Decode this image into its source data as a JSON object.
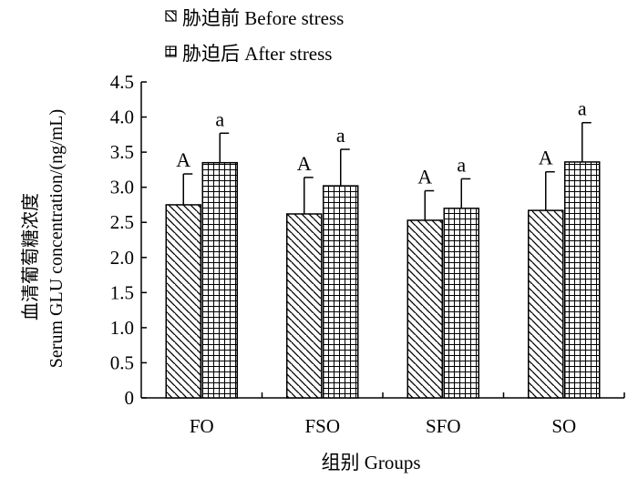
{
  "chart_data": {
    "type": "bar",
    "categories": [
      "FO",
      "FSO",
      "SFO",
      "SO"
    ],
    "series": [
      {
        "name": "胁迫前  Before stress",
        "pattern": "diagonal-hatch",
        "values": [
          2.75,
          2.62,
          2.53,
          2.67
        ],
        "errors": [
          0.44,
          0.52,
          0.42,
          0.55
        ],
        "significance": [
          "A",
          "A",
          "A",
          "A"
        ]
      },
      {
        "name": "胁迫后  After stress",
        "pattern": "grid",
        "values": [
          3.35,
          3.02,
          2.7,
          3.36
        ],
        "errors": [
          0.42,
          0.52,
          0.42,
          0.56
        ],
        "significance": [
          "a",
          "a",
          "a",
          "a"
        ]
      }
    ],
    "ylabel_cn": "血清葡萄糖浓度",
    "ylabel_en": "Serum GLU concentration/(ng/mL)",
    "xlabel": "组别  Groups",
    "ylim": [
      0,
      4.5
    ],
    "yticks": [
      "0",
      "0.5",
      "1.0",
      "1.5",
      "2.0",
      "2.5",
      "3.0",
      "3.5",
      "4.0",
      "4.5"
    ],
    "legend_position": "top-left",
    "grid": false
  }
}
